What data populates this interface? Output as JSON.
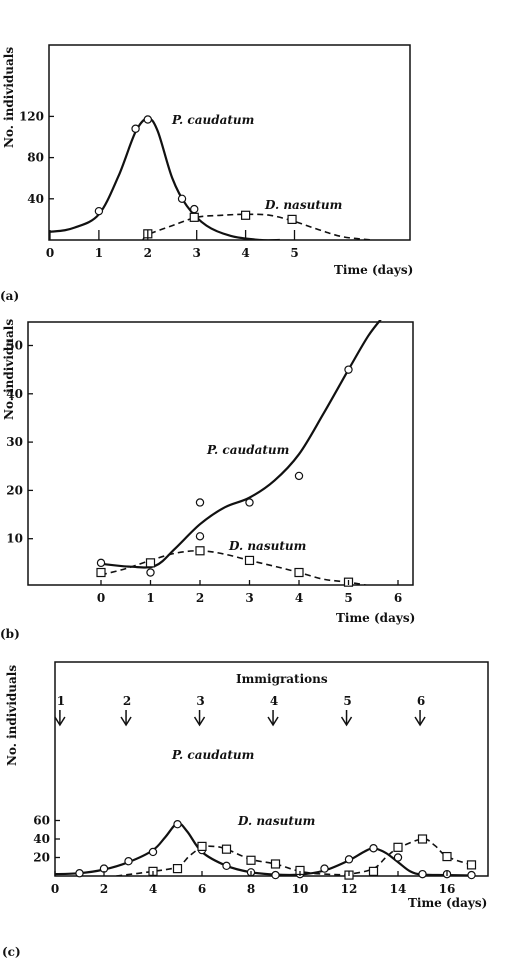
{
  "chart_data": [
    {
      "type": "line",
      "panel_label": "(a)",
      "ylabel": "No. individuals",
      "xlabel": "Time  (days)",
      "xlim": [
        0,
        7.4
      ],
      "ylim": [
        0,
        150
      ],
      "xticks": [
        "0",
        "1",
        "2",
        "3",
        "4",
        "5"
      ],
      "yticks": [
        "40",
        "80",
        "120"
      ],
      "series": [
        {
          "name": "P. caudatum",
          "marker": "circle",
          "style": "solid",
          "points": [
            [
              1,
              28
            ],
            [
              1.75,
              108
            ],
            [
              2,
              117
            ],
            [
              2.7,
              40
            ],
            [
              2.95,
              30
            ]
          ],
          "curve": [
            [
              -1,
              6
            ],
            [
              0,
              8
            ],
            [
              0.5,
              12
            ],
            [
              1,
              25
            ],
            [
              1.4,
              62
            ],
            [
              1.75,
              105
            ],
            [
              2,
              118
            ],
            [
              2.2,
              106
            ],
            [
              2.5,
              60
            ],
            [
              2.8,
              33
            ],
            [
              3.2,
              14
            ],
            [
              3.7,
              4
            ],
            [
              4.3,
              0
            ],
            [
              4.7,
              0
            ]
          ]
        },
        {
          "name": "D. nasutum",
          "marker": "square",
          "style": "dashed",
          "points": [
            [
              2,
              6
            ],
            [
              2.95,
              22
            ],
            [
              4,
              24
            ],
            [
              4.95,
              20
            ]
          ],
          "curve": [
            [
              1.9,
              0
            ],
            [
              2,
              5
            ],
            [
              2.5,
              14
            ],
            [
              3,
              22
            ],
            [
              3.5,
              24
            ],
            [
              4,
              25
            ],
            [
              4.5,
              24
            ],
            [
              5,
              18
            ],
            [
              5.5,
              10
            ],
            [
              6,
              3
            ],
            [
              6.6,
              0
            ]
          ]
        }
      ]
    },
    {
      "type": "line",
      "panel_label": "(b)",
      "ylabel": "No. individuals",
      "xlabel": "Time  (days)",
      "xlim": [
        -1.6,
        6.5
      ],
      "ylim": [
        0,
        55
      ],
      "xticks": [
        "0",
        "1",
        "2",
        "3",
        "4",
        "5",
        "6"
      ],
      "yticks": [
        "10",
        "20",
        "30",
        "40",
        "50"
      ],
      "series": [
        {
          "name": "P. caudatum",
          "marker": "circle",
          "style": "solid",
          "points": [
            [
              0,
              5
            ],
            [
              1,
              3
            ],
            [
              2,
              17.5
            ],
            [
              2,
              10.5
            ],
            [
              3,
              17.5
            ],
            [
              4,
              23
            ],
            [
              5,
              45
            ]
          ],
          "curve": [
            [
              0,
              4.8
            ],
            [
              0.6,
              4.2
            ],
            [
              1.1,
              4.4
            ],
            [
              1.5,
              8
            ],
            [
              2,
              13
            ],
            [
              2.5,
              16.5
            ],
            [
              3,
              18.5
            ],
            [
              3.5,
              22
            ],
            [
              4,
              27.5
            ],
            [
              4.5,
              36
            ],
            [
              5,
              45
            ],
            [
              5.4,
              52
            ],
            [
              5.7,
              56
            ]
          ]
        },
        {
          "name": "D. nasutum",
          "marker": "square",
          "style": "dashed",
          "points": [
            [
              0,
              3
            ],
            [
              1,
              5
            ],
            [
              2,
              7.5
            ],
            [
              3,
              5.5
            ],
            [
              4,
              3
            ],
            [
              5,
              1
            ]
          ],
          "curve": [
            [
              0,
              2.5
            ],
            [
              0.5,
              3.8
            ],
            [
              1,
              5.5
            ],
            [
              1.5,
              7
            ],
            [
              2,
              7.5
            ],
            [
              2.5,
              6.8
            ],
            [
              3,
              5.5
            ],
            [
              3.5,
              4.3
            ],
            [
              4,
              3
            ],
            [
              4.5,
              1.6
            ],
            [
              5,
              1
            ],
            [
              5.4,
              0.3
            ]
          ]
        }
      ]
    },
    {
      "type": "line",
      "panel_label": "(c)",
      "ylabel": "No. individuals",
      "xlabel": "Time  (days)",
      "xlim": [
        0,
        17.8
      ],
      "ylim": [
        0,
        110
      ],
      "xticks": [
        "0",
        "2",
        "4",
        "6",
        "8",
        "10",
        "12",
        "14",
        "16"
      ],
      "yticks": [
        "20",
        "40",
        "60"
      ],
      "immigrations_title": "Immigrations",
      "immigrations": [
        {
          "label": "1",
          "day": 0.2
        },
        {
          "label": "2",
          "day": 2.9
        },
        {
          "label": "3",
          "day": 5.9
        },
        {
          "label": "4",
          "day": 8.9
        },
        {
          "label": "5",
          "day": 11.9
        },
        {
          "label": "6",
          "day": 14.9
        }
      ],
      "series": [
        {
          "name": "P. caudatum",
          "marker": "circle",
          "style": "solid",
          "points": [
            [
              1,
              3
            ],
            [
              2,
              8
            ],
            [
              3,
              16
            ],
            [
              4,
              26
            ],
            [
              5,
              56
            ],
            [
              6,
              28
            ],
            [
              7,
              11
            ],
            [
              8,
              4
            ],
            [
              9,
              1
            ],
            [
              10,
              2
            ],
            [
              11,
              8
            ],
            [
              12,
              18
            ],
            [
              13,
              30
            ],
            [
              14,
              20
            ],
            [
              15,
              2
            ],
            [
              16,
              2
            ],
            [
              17,
              1
            ]
          ],
          "curve": [
            [
              0,
              2
            ],
            [
              1,
              3
            ],
            [
              2,
              7
            ],
            [
              3,
              15
            ],
            [
              4,
              28
            ],
            [
              4.5,
              42
            ],
            [
              5,
              57
            ],
            [
              5.4,
              48
            ],
            [
              6,
              26
            ],
            [
              7,
              11
            ],
            [
              8,
              4
            ],
            [
              9,
              1.5
            ],
            [
              10,
              1.5
            ],
            [
              11,
              6
            ],
            [
              12,
              17
            ],
            [
              12.6,
              26
            ],
            [
              13,
              30
            ],
            [
              13.5,
              25
            ],
            [
              14,
              15
            ],
            [
              14.5,
              5
            ],
            [
              15,
              1.5
            ],
            [
              16,
              1
            ],
            [
              17,
              0.5
            ]
          ]
        },
        {
          "name": "D. nasutum",
          "marker": "square",
          "style": "dashed",
          "points": [
            [
              4,
              5
            ],
            [
              5,
              8
            ],
            [
              6,
              32
            ],
            [
              7,
              29
            ],
            [
              8,
              17
            ],
            [
              9,
              13
            ],
            [
              10,
              6
            ],
            [
              12,
              1
            ],
            [
              13,
              5
            ],
            [
              14,
              31
            ],
            [
              15,
              40
            ],
            [
              16,
              21
            ],
            [
              17,
              12
            ]
          ],
          "curve": [
            [
              2.5,
              0
            ],
            [
              4,
              5
            ],
            [
              5,
              10
            ],
            [
              5.5,
              22
            ],
            [
              6,
              31
            ],
            [
              6.5,
              32
            ],
            [
              7,
              29
            ],
            [
              8,
              18
            ],
            [
              9,
              13
            ],
            [
              10,
              5
            ],
            [
              11,
              2
            ],
            [
              12,
              2
            ],
            [
              13,
              8
            ],
            [
              13.5,
              20
            ],
            [
              14,
              30
            ],
            [
              15,
              40
            ],
            [
              15.5,
              33
            ],
            [
              16,
              21
            ],
            [
              17,
              12
            ]
          ]
        }
      ]
    }
  ]
}
